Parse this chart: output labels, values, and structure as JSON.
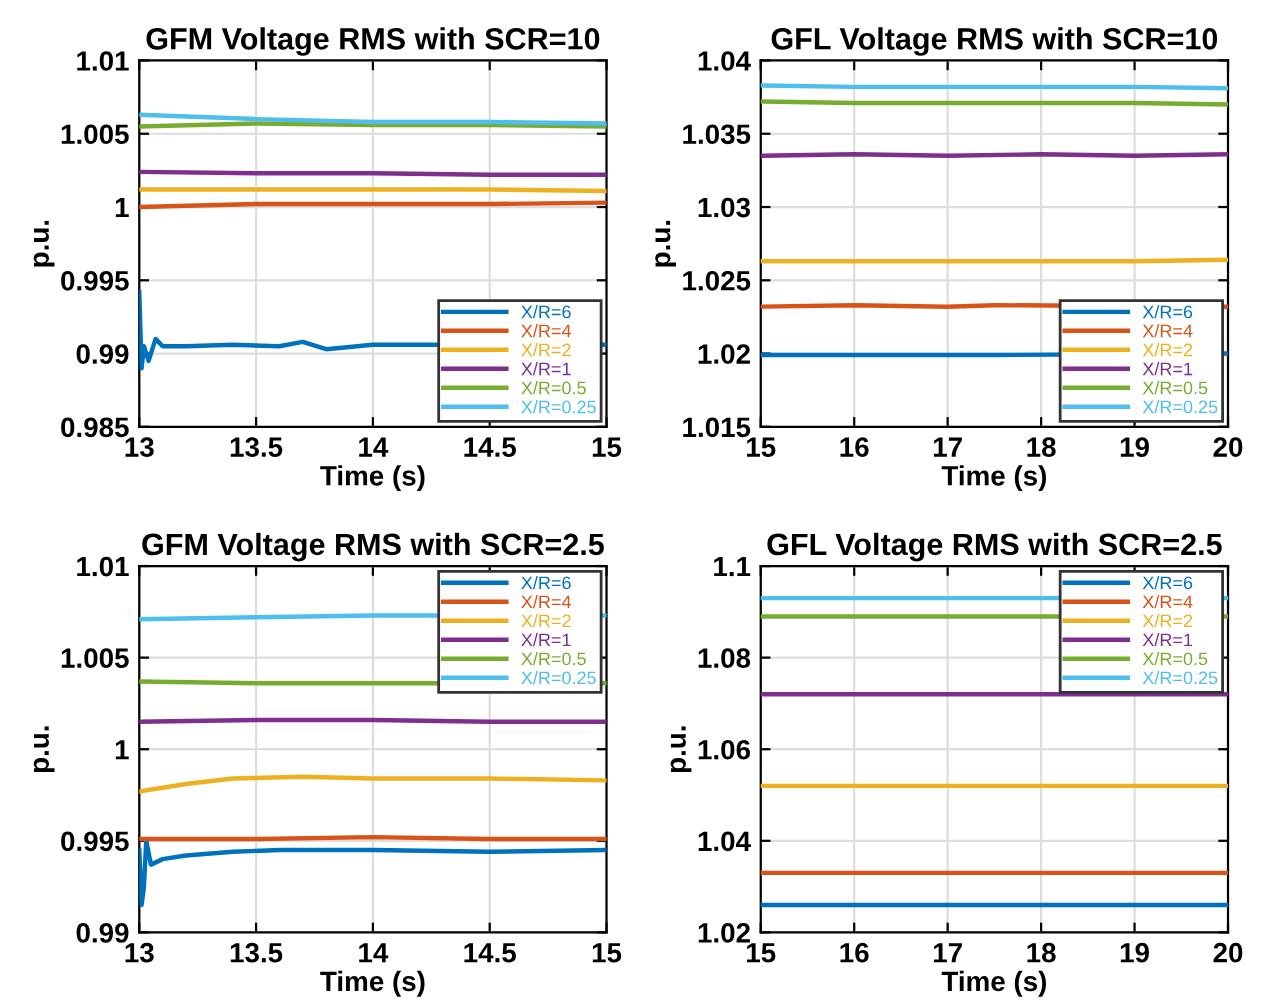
{
  "chart_data": [
    {
      "type": "line",
      "title": "GFM Voltage RMS with SCR=10",
      "xlabel": "Time (s)",
      "ylabel": "p.u.",
      "xlim": [
        13,
        15
      ],
      "ylim": [
        0.985,
        1.01
      ],
      "xticks": [
        13,
        13.5,
        14,
        14.5,
        15
      ],
      "yticks": [
        0.985,
        0.99,
        0.995,
        1,
        1.005,
        1.01
      ],
      "grid": true,
      "legend": "bottom right",
      "line_style": "solid",
      "series": [
        {
          "name": "X/R=6",
          "color": "#0072bd",
          "x": [
            13,
            13.01,
            13.02,
            13.04,
            13.07,
            13.1,
            13.2,
            13.4,
            13.6,
            13.7,
            13.8,
            14,
            15
          ],
          "values": [
            0.9942,
            0.989,
            0.9905,
            0.9895,
            0.991,
            0.9905,
            0.9905,
            0.9906,
            0.9905,
            0.9908,
            0.9903,
            0.9906,
            0.9906
          ]
        },
        {
          "name": "X/R=4",
          "color": "#d95319",
          "x": [
            13,
            13.5,
            14,
            14.5,
            15
          ],
          "values": [
            1.0,
            1.0002,
            1.0002,
            1.0002,
            1.0003
          ]
        },
        {
          "name": "X/R=2",
          "color": "#edb120",
          "x": [
            13,
            13.5,
            14,
            14.5,
            15
          ],
          "values": [
            1.0012,
            1.0012,
            1.0012,
            1.0012,
            1.0011
          ]
        },
        {
          "name": "X/R=1",
          "color": "#7e2f8e",
          "x": [
            13,
            13.5,
            14,
            14.5,
            15
          ],
          "values": [
            1.0024,
            1.0023,
            1.0023,
            1.0022,
            1.0022
          ]
        },
        {
          "name": "X/R=0.5",
          "color": "#77ac30",
          "x": [
            13,
            13.5,
            14,
            14.5,
            15
          ],
          "values": [
            1.0055,
            1.0057,
            1.0056,
            1.0056,
            1.0055
          ]
        },
        {
          "name": "X/R=0.25",
          "color": "#4dbeee",
          "x": [
            13,
            13.5,
            14,
            14.5,
            15
          ],
          "values": [
            1.0063,
            1.006,
            1.0058,
            1.0058,
            1.0057
          ]
        }
      ]
    },
    {
      "type": "line",
      "title": "GFL Voltage RMS with SCR=10",
      "xlabel": "Time (s)",
      "ylabel": "p.u.",
      "xlim": [
        15,
        20
      ],
      "ylim": [
        1.015,
        1.04
      ],
      "xticks": [
        15,
        16,
        17,
        18,
        19,
        20
      ],
      "yticks": [
        1.015,
        1.02,
        1.025,
        1.03,
        1.035,
        1.04
      ],
      "grid": true,
      "legend": "bottom right",
      "line_style": "solid",
      "series": [
        {
          "name": "X/R=6",
          "color": "#0072bd",
          "x": [
            15,
            16,
            17,
            17.5,
            20
          ],
          "values": [
            1.0199,
            1.0199,
            1.0199,
            1.0199,
            1.02
          ]
        },
        {
          "name": "X/R=4",
          "color": "#d95319",
          "x": [
            15,
            16,
            17,
            17.5,
            20
          ],
          "values": [
            1.0232,
            1.0233,
            1.0232,
            1.0233,
            1.0232
          ]
        },
        {
          "name": "X/R=2",
          "color": "#edb120",
          "x": [
            15,
            16,
            17,
            18,
            19,
            20
          ],
          "values": [
            1.0263,
            1.0263,
            1.0263,
            1.0263,
            1.0263,
            1.0264
          ]
        },
        {
          "name": "X/R=1",
          "color": "#7e2f8e",
          "x": [
            15,
            16,
            17,
            18,
            19,
            20
          ],
          "values": [
            1.0335,
            1.0336,
            1.0335,
            1.0336,
            1.0335,
            1.0336
          ]
        },
        {
          "name": "X/R=0.5",
          "color": "#77ac30",
          "x": [
            15,
            16,
            17,
            18,
            19,
            20
          ],
          "values": [
            1.0372,
            1.0371,
            1.0371,
            1.0371,
            1.0371,
            1.037
          ]
        },
        {
          "name": "X/R=0.25",
          "color": "#4dbeee",
          "x": [
            15,
            16,
            17,
            18,
            19,
            20
          ],
          "values": [
            1.0383,
            1.0382,
            1.0382,
            1.0382,
            1.0382,
            1.0381
          ]
        }
      ]
    },
    {
      "type": "line",
      "title": "GFM Voltage RMS with SCR=2.5",
      "xlabel": "Time (s)",
      "ylabel": "p.u.",
      "xlim": [
        13,
        15
      ],
      "ylim": [
        0.99,
        1.01
      ],
      "xticks": [
        13,
        13.5,
        14,
        14.5,
        15
      ],
      "yticks": [
        0.99,
        0.995,
        1,
        1.005,
        1.01
      ],
      "grid": true,
      "legend": "top right",
      "line_style": "solid",
      "series": [
        {
          "name": "X/R=6",
          "color": "#0072bd",
          "x": [
            13,
            13.01,
            13.02,
            13.03,
            13.05,
            13.1,
            13.2,
            13.4,
            13.6,
            14,
            14.5,
            15
          ],
          "values": [
            0.9945,
            0.9915,
            0.9925,
            0.995,
            0.9937,
            0.994,
            0.9942,
            0.9944,
            0.9945,
            0.9945,
            0.9944,
            0.9945
          ]
        },
        {
          "name": "X/R=4",
          "color": "#d95319",
          "x": [
            13,
            13.5,
            14,
            14.5,
            15
          ],
          "values": [
            0.9951,
            0.9951,
            0.9952,
            0.9951,
            0.9951
          ]
        },
        {
          "name": "X/R=2",
          "color": "#edb120",
          "x": [
            13,
            13.2,
            13.4,
            13.7,
            14,
            14.5,
            15
          ],
          "values": [
            0.9977,
            0.9981,
            0.9984,
            0.9985,
            0.9984,
            0.9984,
            0.9983
          ]
        },
        {
          "name": "X/R=1",
          "color": "#7e2f8e",
          "x": [
            13,
            13.5,
            14,
            14.5,
            15
          ],
          "values": [
            1.0015,
            1.0016,
            1.0016,
            1.0015,
            1.0015
          ]
        },
        {
          "name": "X/R=0.5",
          "color": "#77ac30",
          "x": [
            13,
            13.5,
            14,
            15
          ],
          "values": [
            1.0037,
            1.0036,
            1.0036,
            1.0036
          ]
        },
        {
          "name": "X/R=0.25",
          "color": "#4dbeee",
          "x": [
            13,
            13.5,
            14,
            15
          ],
          "values": [
            1.0071,
            1.0072,
            1.0073,
            1.0073
          ]
        }
      ]
    },
    {
      "type": "line",
      "title": "GFL Voltage RMS with SCR=2.5",
      "xlabel": "Time (s)",
      "ylabel": "p.u.",
      "xlim": [
        15,
        20
      ],
      "ylim": [
        1.02,
        1.1
      ],
      "xticks": [
        15,
        16,
        17,
        18,
        19,
        20
      ],
      "yticks": [
        1.02,
        1.04,
        1.06,
        1.08,
        1.1
      ],
      "grid": true,
      "legend": "top right",
      "line_style": "solid",
      "series": [
        {
          "name": "X/R=6",
          "color": "#0072bd",
          "x": [
            15,
            16,
            17,
            18,
            19,
            20
          ],
          "values": [
            1.026,
            1.026,
            1.026,
            1.026,
            1.026,
            1.026
          ]
        },
        {
          "name": "X/R=4",
          "color": "#d95319",
          "x": [
            15,
            16,
            17,
            18,
            19,
            20
          ],
          "values": [
            1.033,
            1.033,
            1.033,
            1.033,
            1.033,
            1.033
          ]
        },
        {
          "name": "X/R=2",
          "color": "#edb120",
          "x": [
            15,
            16,
            17,
            18,
            19,
            20
          ],
          "values": [
            1.052,
            1.052,
            1.052,
            1.052,
            1.052,
            1.052
          ]
        },
        {
          "name": "X/R=1",
          "color": "#7e2f8e",
          "x": [
            15,
            16,
            17,
            18,
            19,
            20
          ],
          "values": [
            1.072,
            1.072,
            1.072,
            1.072,
            1.072,
            1.072
          ]
        },
        {
          "name": "X/R=0.5",
          "color": "#77ac30",
          "x": [
            15,
            16,
            17,
            17.5,
            20
          ],
          "values": [
            1.089,
            1.089,
            1.089,
            1.089,
            1.089
          ]
        },
        {
          "name": "X/R=0.25",
          "color": "#4dbeee",
          "x": [
            15,
            16,
            17,
            17.5,
            20
          ],
          "values": [
            1.093,
            1.093,
            1.093,
            1.093,
            1.093
          ]
        }
      ]
    }
  ]
}
